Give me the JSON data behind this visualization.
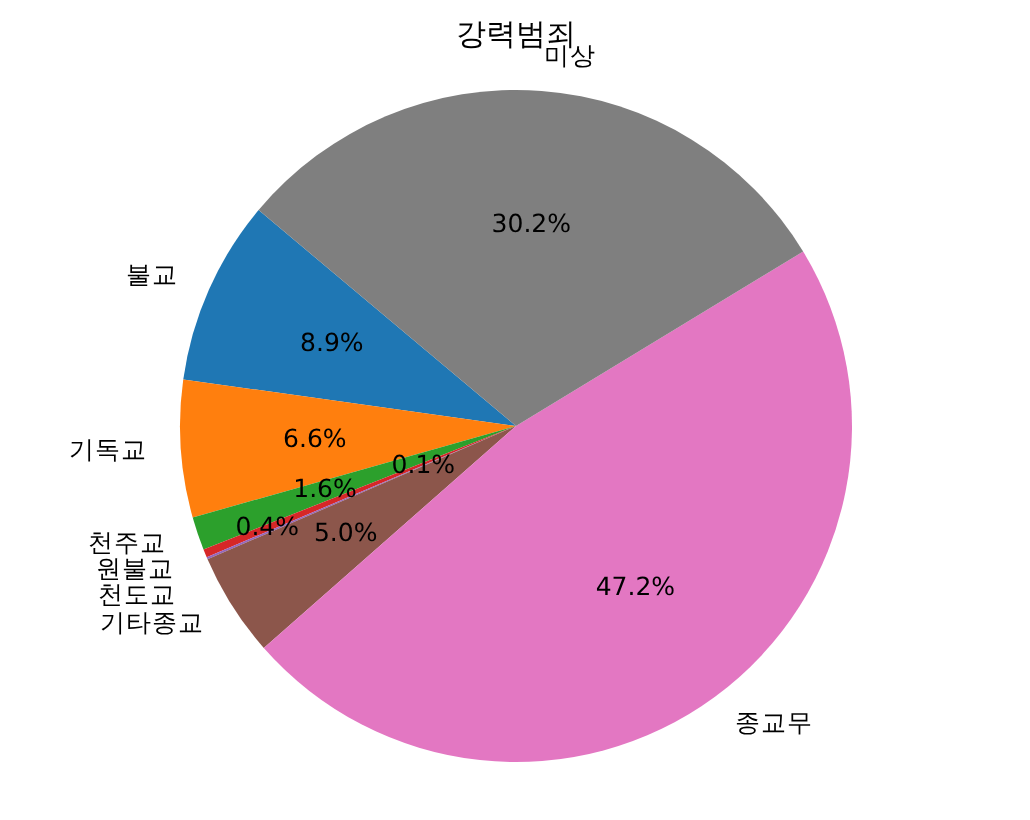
{
  "chart_data": {
    "type": "pie",
    "title": "강력범죄",
    "categories": [
      "불교",
      "기독교",
      "천주교",
      "원불교",
      "천도교",
      "기타종교",
      "종교무",
      "미상"
    ],
    "values": [
      8.9,
      6.6,
      1.6,
      0.4,
      0.1,
      5.0,
      47.2,
      30.2
    ],
    "colors": [
      "#1f77b4",
      "#ff7f0e",
      "#2ca02c",
      "#d62728",
      "#9467bd",
      "#8c564b",
      "#e377c2",
      "#7f7f7f"
    ],
    "value_labels": [
      "8.9%",
      "6.6%",
      "1.6%",
      "0.4%",
      "0.1%",
      "5.0%",
      "47.2%",
      "30.2%"
    ]
  }
}
